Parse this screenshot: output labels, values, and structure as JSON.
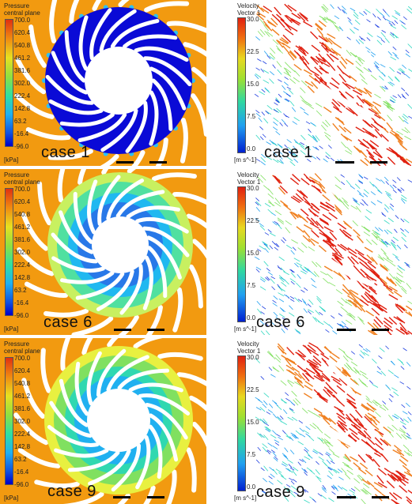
{
  "pressure_legend": {
    "title_line1": "Pressure",
    "title_line2": "central plane",
    "ticks": [
      "700.0",
      "620.4",
      "540.8",
      "461.2",
      "381.6",
      "302.0",
      "222.4",
      "142.8",
      "63.2",
      "-16.4",
      "-96.0"
    ],
    "unit": "[kPa]"
  },
  "velocity_legend": {
    "title_line1": "Velocity",
    "title_line2": "Vector 1",
    "ticks": [
      "30.0",
      "22.5",
      "15.0",
      "7.5",
      "0.0"
    ],
    "unit": "[m s^-1]"
  },
  "rows": [
    {
      "case_left": "case 1",
      "case_right": "case 1"
    },
    {
      "case_left": "case 6",
      "case_right": "case 6"
    },
    {
      "case_left": "case 9",
      "case_right": "case 9"
    }
  ],
  "colors": {
    "background_orange": "#f39c12",
    "blade_white": "#ffffff",
    "low_blue": "#0000d8"
  }
}
